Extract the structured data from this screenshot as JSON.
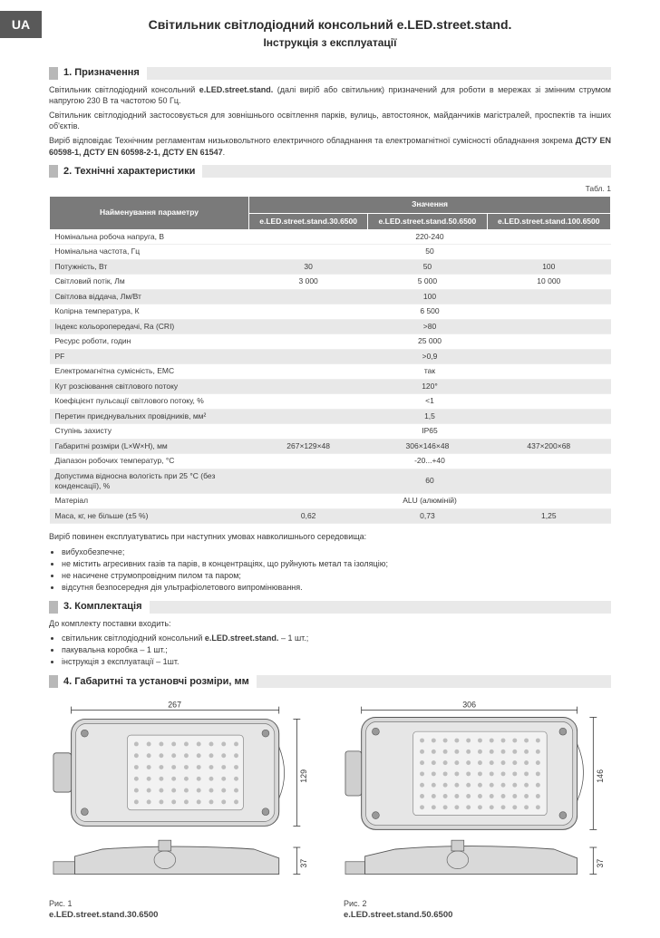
{
  "lang_tab": "UA",
  "header": {
    "title": "Світильник світлодіодний консольний e.LED.street.stand.",
    "subtitle": "Інструкція з експлуатації"
  },
  "sections": {
    "s1": "1. Призначення",
    "s2": "2. Технічні характеристики",
    "s3": "3. Комплектація",
    "s4": "4. Габаритні та установчі розміри, мм"
  },
  "intro": {
    "p1_a": "Світильник світлодіодний консольний ",
    "p1_b": "e.LED.street.stand.",
    "p1_c": " (далі виріб або світильник) призначений для роботи в мережах зі змінним струмом напругою 230 В та частотою 50 Гц.",
    "p2": "Світильник світлодіодний застосовується для зовнішнього освітлення парків, вулиць, автостоянок, майданчиків магістралей, проспектів та інших об'єктів.",
    "p3_a": "Виріб відповідає Технічним регламентам низьковольтного електричного обладнання та електромагнітної сумісності обладнання зокрема ",
    "p3_b": "ДСТУ EN 60598-1, ДСТУ EN 60598-2-1, ДСТУ EN 61547"
  },
  "table": {
    "caption": "Табл. 1",
    "head_param": "Найменування параметру",
    "head_value": "Значення",
    "models": [
      "e.LED.street.stand.30.6500",
      "e.LED.street.stand.50.6500",
      "e.LED.street.stand.100.6500"
    ],
    "rows": [
      {
        "p": "Номінальна робоча напруга, В",
        "v": [
          "220-240"
        ],
        "shade": false
      },
      {
        "p": "Номінальна частота, Гц",
        "v": [
          "50"
        ],
        "shade": false
      },
      {
        "p": "Потужність, Вт",
        "v": [
          "30",
          "50",
          "100"
        ],
        "shade": true
      },
      {
        "p": "Світловий потік, Лм",
        "v": [
          "3 000",
          "5 000",
          "10 000"
        ],
        "shade": false
      },
      {
        "p": "Світлова віддача, Лм/Вт",
        "v": [
          "100"
        ],
        "shade": true
      },
      {
        "p": "Колірна температура, К",
        "v": [
          "6 500"
        ],
        "shade": false
      },
      {
        "p": "Індекс кольоропередачі, Ra (CRI)",
        "v": [
          ">80"
        ],
        "shade": true
      },
      {
        "p": "Ресурс роботи, годин",
        "v": [
          "25 000"
        ],
        "shade": false
      },
      {
        "p": "PF",
        "v": [
          ">0,9"
        ],
        "shade": true
      },
      {
        "p": "Електромагнітна сумісність, ЕМС",
        "v": [
          "так"
        ],
        "shade": false
      },
      {
        "p": "Кут розсіювання світлового потоку",
        "v": [
          "120°"
        ],
        "shade": true
      },
      {
        "p": "Коефіцієнт пульсації світлового потоку, %",
        "v": [
          "<1"
        ],
        "shade": false
      },
      {
        "p": "Перетин приєднувальних провідників, мм²",
        "v": [
          "1,5"
        ],
        "shade": true
      },
      {
        "p": "Ступінь захисту",
        "v": [
          "IP65"
        ],
        "shade": false
      },
      {
        "p": "Габаритні розміри (L×W×H), мм",
        "v": [
          "267×129×48",
          "306×146×48",
          "437×200×68"
        ],
        "shade": true
      },
      {
        "p": "Діапазон робочих температур, °С",
        "v": [
          "-20...+40"
        ],
        "shade": false
      },
      {
        "p": "Допустима відносна вологість при 25 °С (без конденсації), %",
        "v": [
          "60"
        ],
        "shade": true
      },
      {
        "p": "Матеріал",
        "v": [
          "ALU (алюміній)"
        ],
        "shade": false
      },
      {
        "p": "Маса, кг, не більше (±5 %)",
        "v": [
          "0,62",
          "0,73",
          "1,25"
        ],
        "shade": true
      }
    ]
  },
  "conditions": {
    "intro": "Виріб повинен експлуатуватись при наступних умовах навколишнього середовища:",
    "items": [
      "вибухобезпечне;",
      "не містить агресивних газів та парів, в концентраціях, що руйнують метал та ізоляцію;",
      "не насичене струмопровідним пилом та паром;",
      "відсутня безпосередня дія ультрафіолетового випромінювання."
    ]
  },
  "kit": {
    "intro": "До комплекту поставки входить:",
    "items": [
      "світильник світлодіодний консольний e.LED.street.stand. – 1 шт.;",
      "пакувальна коробка – 1 шт.;",
      "інструкція з експлуатації – 1шт."
    ],
    "bold_in_item0": "e.LED.street.stand."
  },
  "figures": {
    "f1": {
      "width_label": "267",
      "height_label": "129",
      "side_label": "37",
      "caption_prefix": "Рис. 1",
      "model": "e.LED.street.stand.30.6500"
    },
    "f2": {
      "width_label": "306",
      "height_label": "146",
      "side_label": "37",
      "caption_prefix": "Рис. 2",
      "model": "e.LED.street.stand.50.6500"
    }
  },
  "colors": {
    "gray_tab": "#595959",
    "section_stub": "#b8b8b8",
    "section_tail": "#e9e9e9",
    "th_bg": "#7a7a7a",
    "row_shade": "#e8e8e8"
  }
}
